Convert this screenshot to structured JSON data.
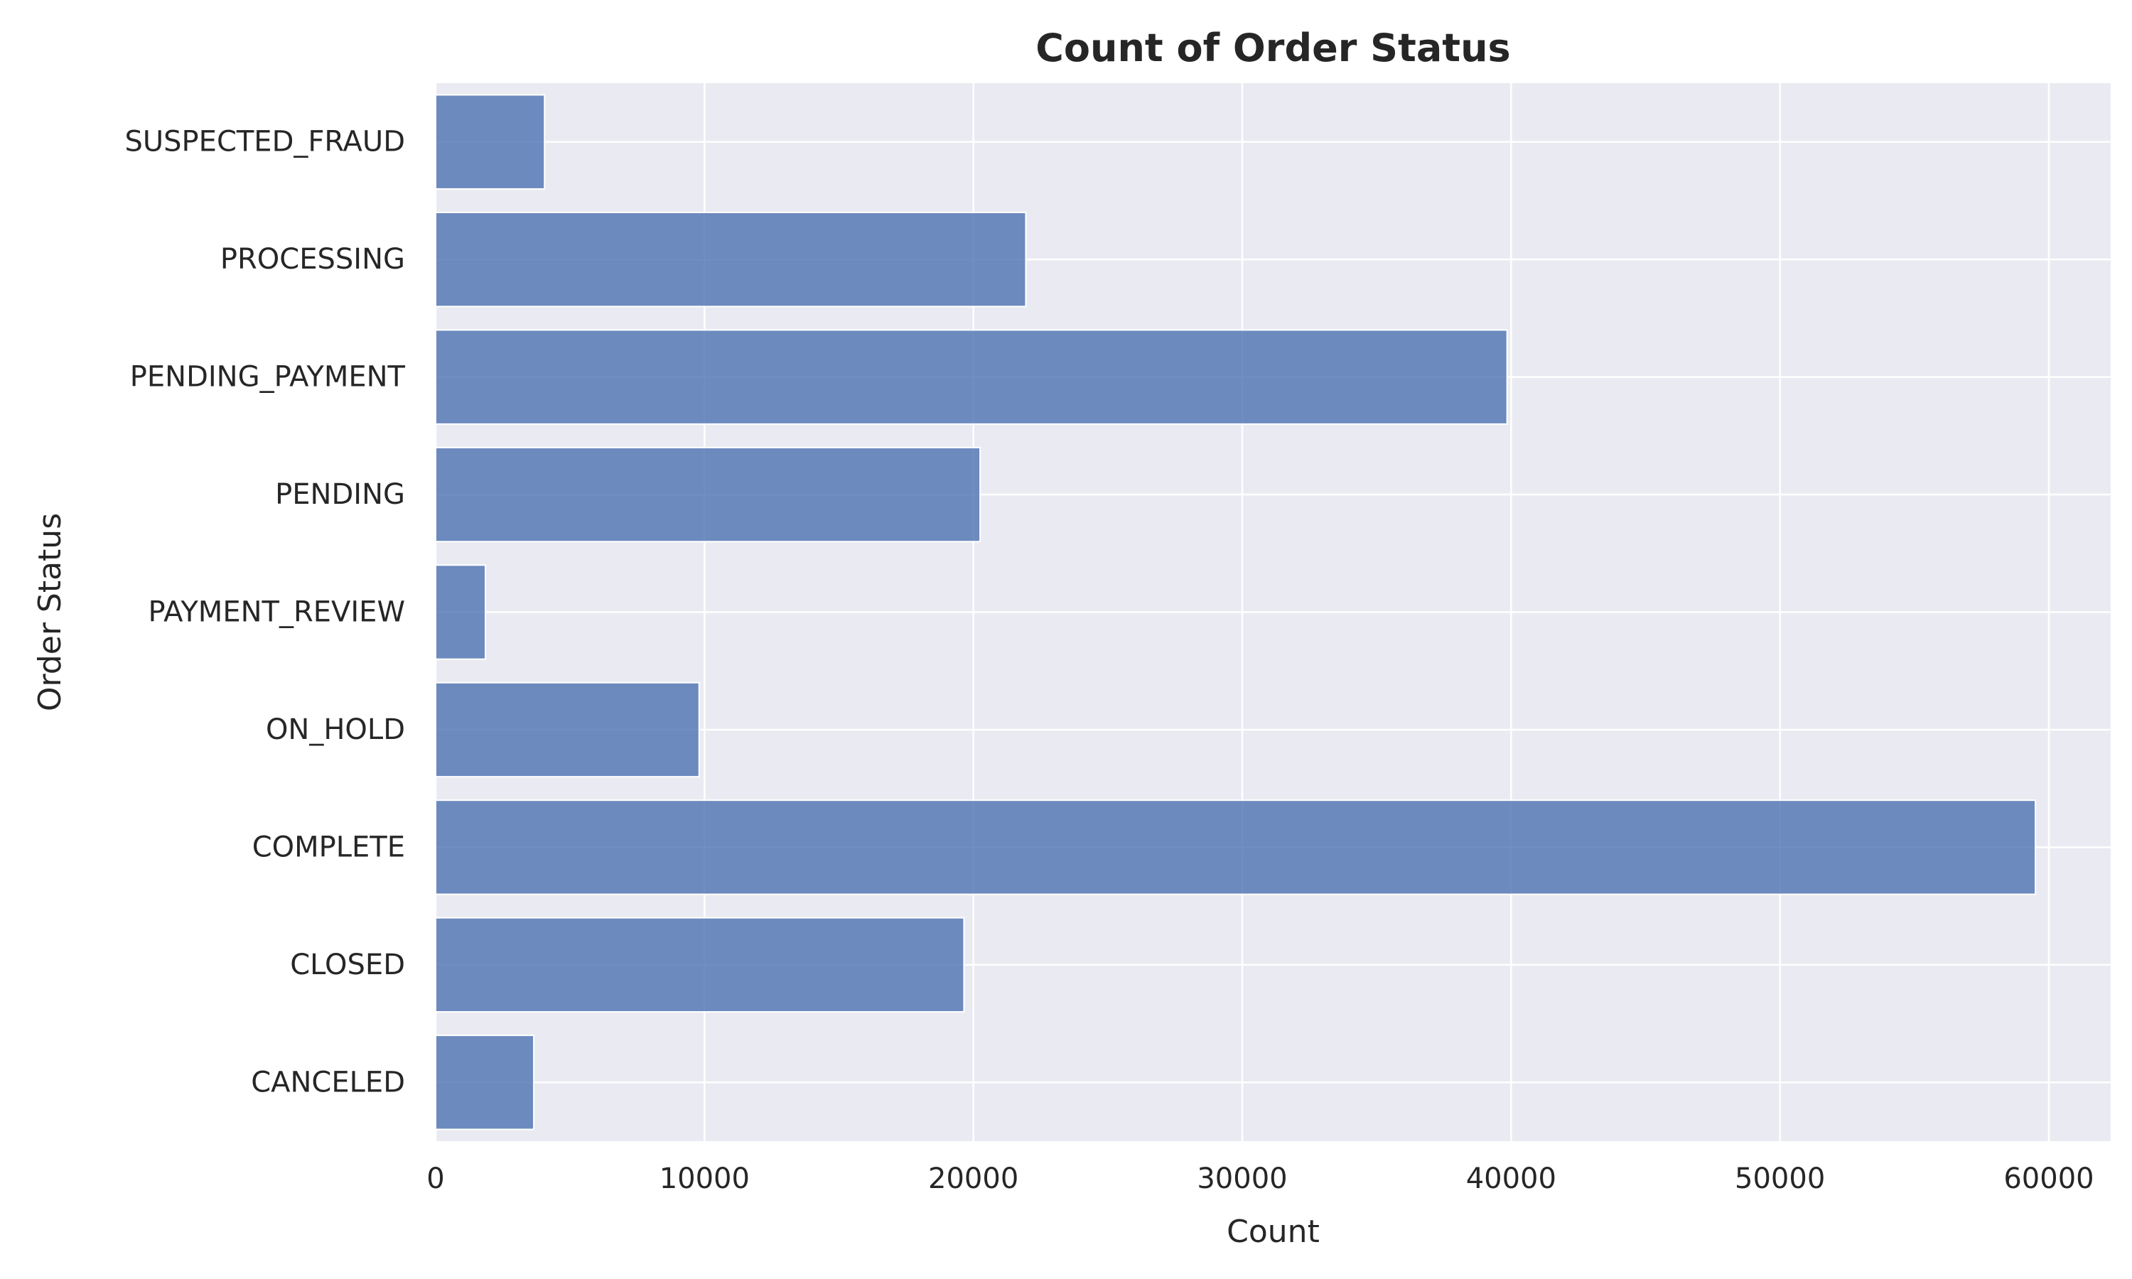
{
  "chart_data": {
    "type": "bar",
    "orientation": "horizontal",
    "title": "Count of Order Status",
    "xlabel": "Count",
    "ylabel": "Order Status",
    "categories": [
      "CANCELED",
      "CLOSED",
      "COMPLETE",
      "ON_HOLD",
      "PAYMENT_REVIEW",
      "PENDING",
      "PENDING_PAYMENT",
      "PROCESSING",
      "SUSPECTED_FRAUD"
    ],
    "values": [
      3650,
      19650,
      59500,
      9800,
      1850,
      20250,
      39850,
      21950,
      4050
    ],
    "xlim": [
      0,
      62300
    ],
    "xticks": [
      0,
      10000,
      20000,
      30000,
      40000,
      50000,
      60000
    ],
    "xtick_labels": [
      "0",
      "10000",
      "20000",
      "30000",
      "40000",
      "50000",
      "60000"
    ],
    "grid": true,
    "bar_color": "#4c72b0",
    "background_color": "#eaeaf2",
    "grid_color": "#ffffff"
  }
}
